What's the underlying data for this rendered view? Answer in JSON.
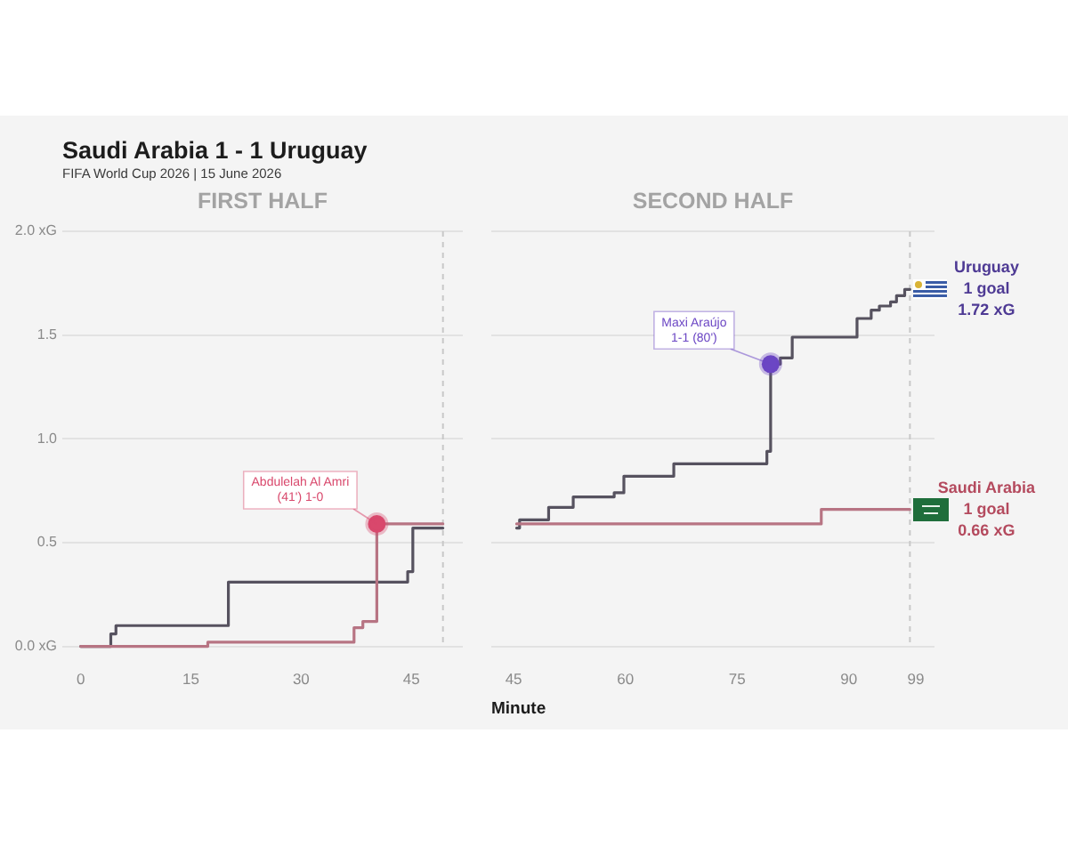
{
  "chart_data": [
    {
      "type": "step",
      "title": "FIRST HALF",
      "annotations": [
        "Saudi Arabia 1 - 1 Uruguay",
        "FIFA World Cup 2026 | 15 June 2026",
        {
          "text": "Abdulelah Al Amri\n(41') 1-0",
          "x": 40.3,
          "y": 0.59
        }
      ],
      "xlim": [
        -2.5,
        52
      ],
      "xticks": [
        0,
        15,
        30,
        45
      ],
      "ylim": [
        0,
        2
      ],
      "yticks": [
        {
          "value": 0,
          "label": "0.0 xG"
        },
        {
          "value": 0.5,
          "label": "0.5"
        },
        {
          "value": 1,
          "label": "1.0"
        },
        {
          "value": 1.5,
          "label": "1.5"
        },
        {
          "value": 2,
          "label": "2.0 xG"
        }
      ],
      "grid": "y",
      "legend": false,
      "ref_lines": [
        {
          "axis": "x",
          "value": 49.3,
          "color": "#c8c8c8",
          "line_style": "dashed"
        }
      ],
      "series": [
        {
          "color": "#b77483",
          "x": [
            0,
            17.3,
            37.2,
            38.4,
            40.3,
            49.3
          ],
          "values": [
            0,
            0.02,
            0.09,
            0.12,
            0.59,
            0.59
          ]
        },
        {
          "color": "#56525f",
          "x": [
            0,
            4.1,
            4.8,
            20.1,
            44.5,
            45.2,
            49.3
          ],
          "values": [
            0,
            0.06,
            0.1,
            0.31,
            0.36,
            0.57,
            0.57
          ]
        },
        {
          "type": "scatter",
          "color": "#d9486c",
          "marker": "circle",
          "x": [
            40.3
          ],
          "values": [
            0.59
          ]
        }
      ]
    },
    {
      "type": "step",
      "title": "SECOND HALF",
      "xlabel": "Minute",
      "annotations": [
        {
          "text": "Maxi Araújo\n1-1 (80')",
          "x": 79.5,
          "y": 1.36
        },
        "1 goal\n0.66 xG",
        "1 goal\n1.72 xG"
      ],
      "xlim": [
        42,
        101.5
      ],
      "xticks": [
        45,
        60,
        75,
        90,
        99
      ],
      "ylim": [
        0,
        2
      ],
      "yticks": [
        0,
        0.5,
        1,
        1.5,
        2
      ],
      "tick_labels": "x",
      "grid": "y",
      "legend": false,
      "ref_lines": [
        {
          "axis": "x",
          "value": 98.2,
          "color": "#c8c8c8",
          "line_style": "dashed"
        }
      ],
      "series": [
        {
          "name": "Saudi Arabia",
          "color": "#b77483",
          "x": [
            45.4,
            86.3,
            98.2
          ],
          "values": [
            0.59,
            0.66,
            0.66
          ]
        },
        {
          "name": "Uruguay",
          "color": "#56525f",
          "x": [
            45.4,
            45.8,
            49.7,
            53.0,
            58.5,
            59.8,
            66.5,
            79.0,
            79.5,
            80.8,
            82.4,
            91.1,
            93.0,
            94.1,
            95.6,
            96.4,
            97.5,
            98.2
          ],
          "values": [
            0.57,
            0.61,
            0.67,
            0.72,
            0.74,
            0.82,
            0.88,
            0.94,
            1.36,
            1.39,
            1.49,
            1.58,
            1.62,
            1.64,
            1.66,
            1.69,
            1.72,
            1.72
          ]
        },
        {
          "type": "scatter",
          "color": "#6b46c4",
          "marker": "circle",
          "x": [
            79.5
          ],
          "values": [
            1.36
          ]
        }
      ]
    }
  ]
}
